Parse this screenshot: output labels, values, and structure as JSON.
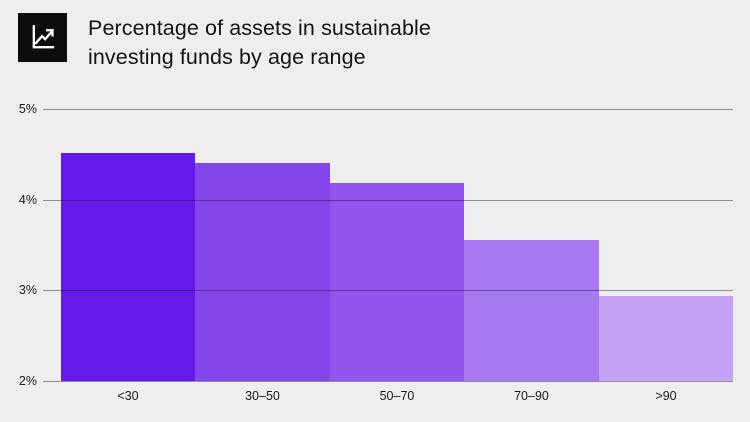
{
  "header": {
    "title": "Percentage of assets in sustainable investing funds by age range",
    "icon": "line-chart-icon"
  },
  "colors": {
    "background": "#EEEEEE",
    "icon_background": "#0D0D0D",
    "icon_glyph": "#FFFFFF",
    "gridline": "rgba(25,25,25,0.45)",
    "text": "#1A1A1A"
  },
  "chart_data": {
    "type": "bar",
    "title": "Percentage of assets in sustainable investing funds by age range",
    "categories": [
      "<30",
      "30–50",
      "50–70",
      "70–90",
      ">90"
    ],
    "values": [
      4.52,
      4.4,
      4.18,
      3.55,
      2.94
    ],
    "bar_colors": [
      "#6519EA",
      "#8346EB",
      "#9155EE",
      "#A77AF2",
      "#C5A2F6"
    ],
    "xlabel": "",
    "ylabel": "",
    "ylim": [
      2,
      5
    ],
    "ytick_labels": [
      "5%",
      "4%",
      "3%",
      "2%"
    ],
    "ytick_values": [
      5,
      4,
      3,
      2
    ],
    "grid": "horizontal-gridlines-over-bars",
    "legend": "none"
  }
}
